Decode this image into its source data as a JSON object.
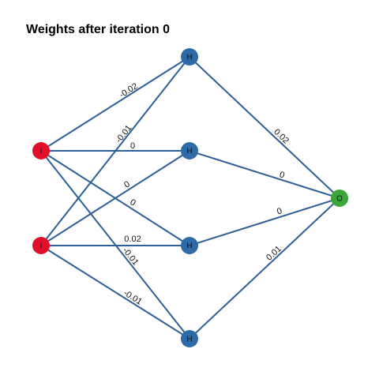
{
  "title": "Weights after iteration 0",
  "nodes": [
    {
      "label": "I"
    },
    {
      "label": "I"
    },
    {
      "label": "H"
    },
    {
      "label": "H"
    },
    {
      "label": "H"
    },
    {
      "label": "H"
    },
    {
      "label": "O"
    }
  ],
  "edges": [
    {
      "weight": "-0.02"
    },
    {
      "weight": "-0.01"
    },
    {
      "weight": "0"
    },
    {
      "weight": "0"
    },
    {
      "weight": "0"
    },
    {
      "weight": "0.02"
    },
    {
      "weight": "-0.01"
    },
    {
      "weight": "-0.01"
    },
    {
      "weight": "0.02"
    },
    {
      "weight": "0"
    },
    {
      "weight": "0"
    },
    {
      "weight": "0.01"
    }
  ]
}
